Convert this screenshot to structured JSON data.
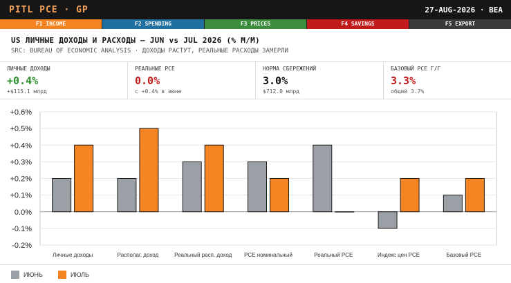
{
  "topbar": {
    "title": "PITL PCE · GP",
    "date_source": "27-AUG-2026 · BEA"
  },
  "fkeys": [
    {
      "label": "F1 INCOME",
      "color": "#f58522"
    },
    {
      "label": "F2 SPENDING",
      "color": "#1f6fa0"
    },
    {
      "label": "F3 PRICES",
      "color": "#3b8c3d"
    },
    {
      "label": "F4 SAVINGS",
      "color": "#c11a1a"
    },
    {
      "label": "F5 EXPORT",
      "color": "#3a3a3a"
    }
  ],
  "headline": "US ЛИЧНЫЕ ДОХОДЫ И РАСХОДЫ — JUN vs JUL 2026 (% M/M)",
  "subline": "SRC: BUREAU OF ECONOMIC ANALYSIS · ДОХОДЫ РАСТУТ, РЕАЛЬНЫЕ РАСХОДЫ ЗАМЕРЛИ",
  "kpis": [
    {
      "label": "ЛИЧНЫЕ ДОХОДЫ",
      "value": "+0.4%",
      "note": "+$115.1 млрд",
      "color": "#2e8b2e"
    },
    {
      "label": "РЕАЛЬНЫЕ PCE",
      "value": "0.0%",
      "note": "с +0.4% в июне",
      "color": "#c11a1a"
    },
    {
      "label": "НОРМА СБЕРЕЖЕНИЙ",
      "value": "3.0%",
      "note": "$712.0 млрд",
      "color": "#111111"
    },
    {
      "label": "БАЗОВЫЙ PCE Г/Г",
      "value": "3.3%",
      "note": "общий 3.7%",
      "color": "#c11a1a"
    }
  ],
  "chart_data": {
    "type": "bar",
    "categories": [
      "Личные доходы",
      "Располаг. доход",
      "Реальный расп. доход",
      "PCE номинальный",
      "Реальный PCE",
      "Индекс цен PCE",
      "Базовый PCE"
    ],
    "series": [
      {
        "name": "ИЮНЬ",
        "values": [
          0.2,
          0.2,
          0.3,
          0.3,
          0.4,
          -0.1,
          0.1
        ],
        "color": "#9aa0a6"
      },
      {
        "name": "ИЮЛЬ",
        "values": [
          0.4,
          0.5,
          0.4,
          0.2,
          0.0,
          0.2,
          0.2
        ],
        "color": "#f58522"
      }
    ],
    "ylim": [
      -0.2,
      0.6
    ],
    "yticks": [
      "-0.2%",
      "-0.1%",
      "0.0%",
      "+0.1%",
      "+0.2%",
      "+0.3%",
      "+0.4%",
      "+0.5%",
      "+0.6%"
    ],
    "ytick_values": [
      -0.2,
      -0.1,
      0.0,
      0.1,
      0.2,
      0.3,
      0.4,
      0.5,
      0.6
    ],
    "grid": true,
    "legend_position": "bottom-left"
  }
}
